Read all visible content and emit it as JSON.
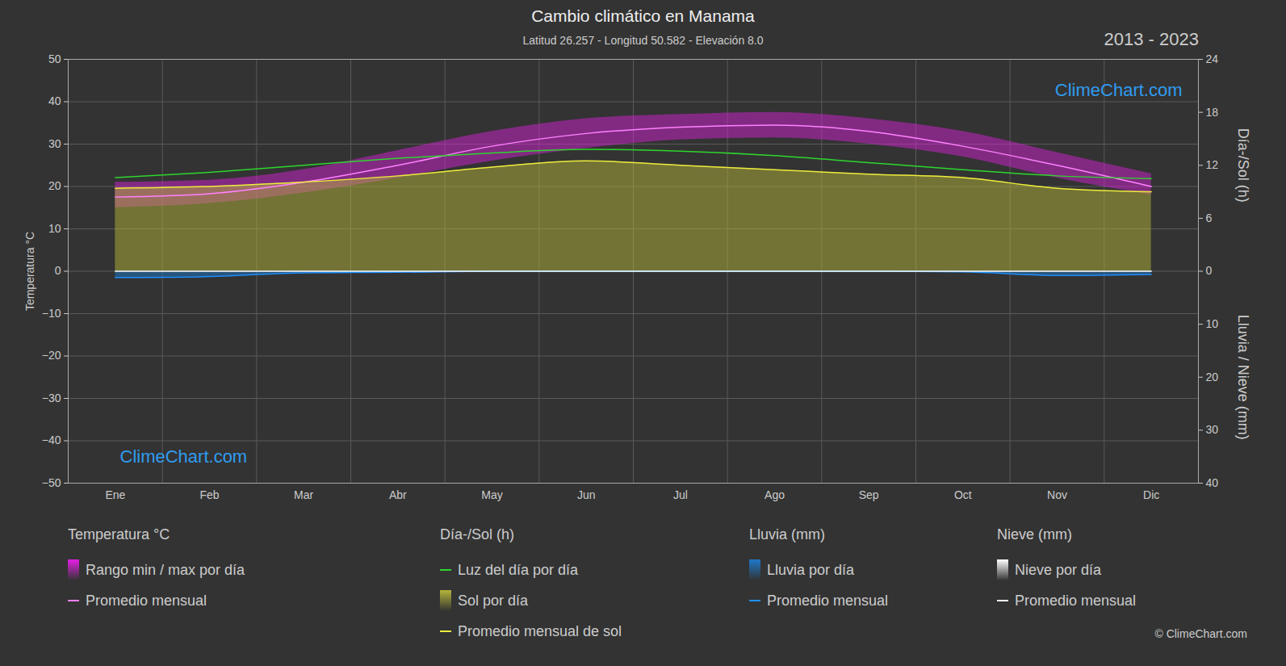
{
  "chart_data": {
    "type": "line",
    "title": "Cambio climático en Manama",
    "subtitle": "Latitud 26.257 - Longitud 50.582 - Elevación 8.0",
    "period": "2013 - 2023",
    "watermark": "ClimeChart.com",
    "credit": "© ClimeChart.com",
    "categories": [
      "Ene",
      "Feb",
      "Mar",
      "Abr",
      "May",
      "Jun",
      "Jul",
      "Ago",
      "Sep",
      "Oct",
      "Nov",
      "Dic"
    ],
    "y_label": "Temperatura °C",
    "y2_label": "Día-/Sol (h)",
    "y3_label": "Lluvia / Nieve (mm)",
    "ylim": [
      -50,
      50
    ],
    "yticks": [
      -50,
      -40,
      -30,
      -20,
      -10,
      0,
      10,
      20,
      30,
      40,
      50
    ],
    "y2lim": [
      0,
      24
    ],
    "y2ticks": [
      0,
      6,
      12,
      18,
      24
    ],
    "y3lim": [
      0,
      40
    ],
    "y3ticks": [
      10,
      20,
      30,
      40
    ],
    "grid": true,
    "legend": "bottom",
    "groups": [
      {
        "title": "Temperatura °C",
        "series": [
          {
            "name": "Rango min / max por día",
            "type": "band",
            "axis": "y",
            "color": "#e31ee3",
            "min": [
              15,
              16,
              18.5,
              22,
              26,
              29,
              31,
              31.5,
              30,
              27,
              22,
              18
            ],
            "max": [
              21,
              21.5,
              24,
              28.5,
              33,
              36,
              37,
              37.5,
              36,
              33,
              28,
              23
            ]
          },
          {
            "name": "Promedio mensual",
            "type": "line",
            "axis": "y",
            "color": "#ff80ff",
            "values": [
              17.5,
              18.3,
              21,
              25,
              29.5,
              32.5,
              34,
              34.5,
              33,
              29.5,
              25,
              20
            ]
          }
        ]
      },
      {
        "title": "Día-/Sol (h)",
        "series": [
          {
            "name": "Luz del día por día",
            "type": "line",
            "axis": "y2",
            "color": "#2ed62e",
            "values": [
              10.6,
              11.2,
              12.0,
              12.8,
              13.4,
              13.8,
              13.6,
              13.1,
              12.3,
              11.5,
              10.8,
              10.5
            ]
          },
          {
            "name": "Sol por día",
            "type": "area",
            "axis": "y2",
            "color": "#b4b43a",
            "values": [
              9.4,
              9.6,
              10.1,
              10.8,
              11.8,
              12.5,
              12.0,
              11.5,
              11.0,
              10.6,
              9.4,
              9.0
            ]
          },
          {
            "name": "Promedio mensual de sol",
            "type": "line",
            "axis": "y2",
            "color": "#ecec3c",
            "values": [
              9.4,
              9.6,
              10.1,
              10.8,
              11.8,
              12.5,
              12.0,
              11.5,
              11.0,
              10.6,
              9.4,
              9.0
            ]
          }
        ]
      },
      {
        "title": "Lluvia (mm)",
        "series": [
          {
            "name": "Lluvia por día",
            "type": "area",
            "axis": "y3",
            "color": "#1e78c8",
            "values": [
              1.2,
              1.0,
              0.3,
              0.2,
              0.0,
              0.0,
              0.0,
              0.0,
              0.0,
              0.1,
              0.8,
              0.6
            ]
          },
          {
            "name": "Promedio mensual",
            "type": "line",
            "axis": "y3",
            "color": "#1e90ff",
            "values": [
              1.2,
              1.0,
              0.3,
              0.2,
              0.0,
              0.0,
              0.0,
              0.0,
              0.0,
              0.1,
              0.8,
              0.6
            ]
          }
        ]
      },
      {
        "title": "Nieve (mm)",
        "series": [
          {
            "name": "Nieve por día",
            "type": "area",
            "axis": "y3",
            "color": "#ffffff",
            "values": [
              0,
              0,
              0,
              0,
              0,
              0,
              0,
              0,
              0,
              0,
              0,
              0
            ]
          },
          {
            "name": "Promedio mensual",
            "type": "line",
            "axis": "y3",
            "color": "#ffffff",
            "values": [
              0,
              0,
              0,
              0,
              0,
              0,
              0,
              0,
              0,
              0,
              0,
              0
            ]
          }
        ]
      }
    ]
  }
}
